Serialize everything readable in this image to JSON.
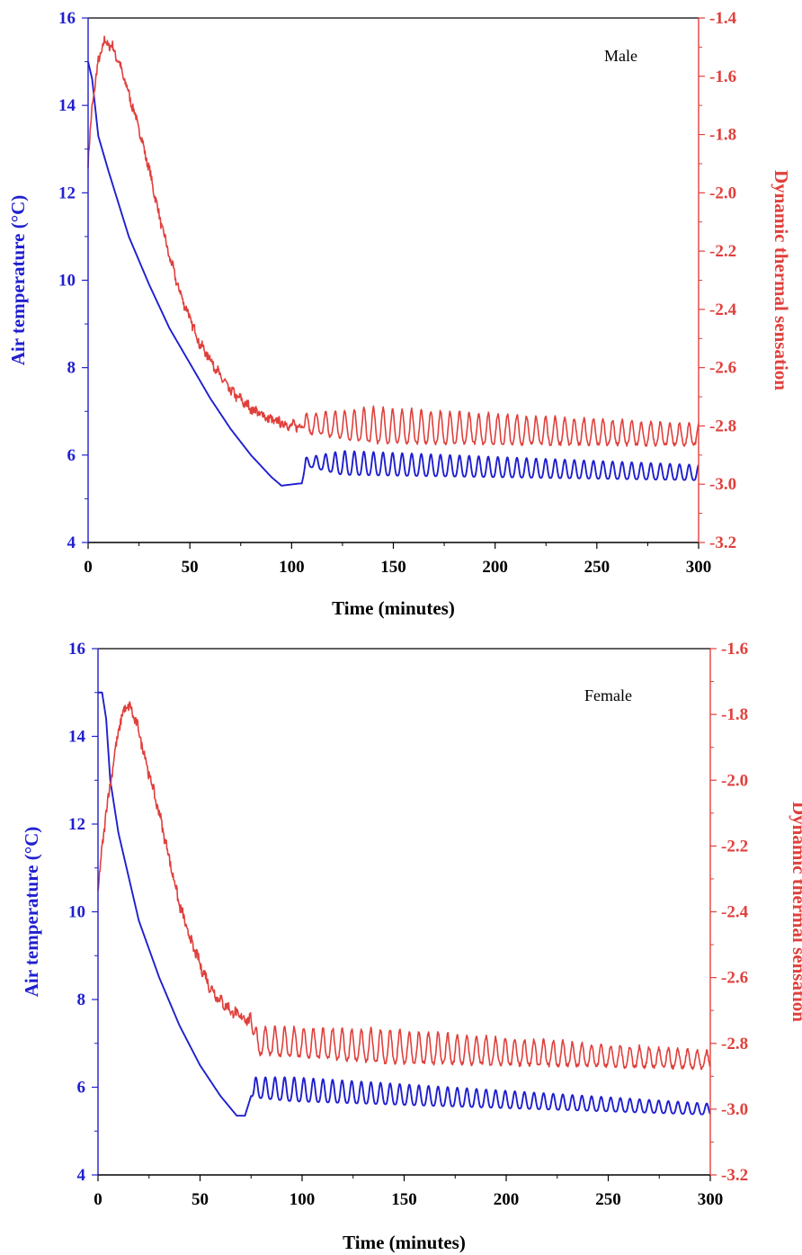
{
  "figure": {
    "colors": {
      "left_axis": "#1f1fcf",
      "right_axis": "#e0403c",
      "frame": "#000000"
    }
  },
  "chart_data": [
    {
      "type": "line",
      "panel_label": "Male",
      "xlabel": "Time (minutes)",
      "ylabel_left": "Air temperature (°C)",
      "ylabel_right": "Dynamic thermal sensation",
      "xlim": [
        0,
        300
      ],
      "ylim_left": [
        4,
        16
      ],
      "ylim_right": [
        -3.2,
        -1.4
      ],
      "x_ticks": [
        0,
        50,
        100,
        150,
        200,
        250,
        300
      ],
      "x_tick_labels": [
        "0",
        "50",
        "100",
        "150",
        "200",
        "250",
        "300"
      ],
      "left_ticks": [
        4,
        6,
        8,
        10,
        12,
        14,
        16
      ],
      "left_tick_labels": [
        "4",
        "6",
        "8",
        "10",
        "12",
        "14",
        "16"
      ],
      "right_ticks": [
        -3.2,
        -3.0,
        -2.8,
        -2.6,
        -2.4,
        -2.2,
        -2.0,
        -1.8,
        -1.6,
        -1.4
      ],
      "right_tick_labels": [
        "-3.2",
        "-3.0",
        "-2.8",
        "-2.6",
        "-2.4",
        "-2.2",
        "-2.0",
        "-1.8",
        "-1.6",
        "-1.4"
      ],
      "grid": false,
      "series": [
        {
          "axis": "left",
          "color": "#1f1fcf",
          "trend": {
            "x": [
              0,
              2,
              5,
              10,
              20,
              30,
              40,
              50,
              60,
              70,
              80,
              90,
              95,
              104
            ],
            "y": [
              15.0,
              14.6,
              13.3,
              12.5,
              11.0,
              9.9,
              8.9,
              8.1,
              7.3,
              6.6,
              6.0,
              5.5,
              5.3,
              5.35
            ]
          },
          "oscillation": {
            "start": 105,
            "end": 300,
            "period": 4.7,
            "center_start": 5.85,
            "center_end": 5.6,
            "amplitude_start": 0.15,
            "amplitude_peak": 0.55,
            "amplitude_end": 0.35,
            "peak_at": 125
          }
        },
        {
          "axis": "right",
          "color": "#e0403c",
          "trend": {
            "x": [
              0,
              2,
              5,
              8,
              12,
              15,
              20,
              25,
              30,
              35,
              40,
              45,
              50,
              55,
              60,
              65,
              70,
              75,
              80,
              85,
              90,
              95,
              100,
              105
            ],
            "y": [
              -1.9,
              -1.7,
              -1.55,
              -1.48,
              -1.5,
              -1.55,
              -1.66,
              -1.78,
              -1.92,
              -2.08,
              -2.22,
              -2.34,
              -2.43,
              -2.52,
              -2.57,
              -2.63,
              -2.68,
              -2.71,
              -2.74,
              -2.76,
              -2.78,
              -2.79,
              -2.8,
              -2.8
            ]
          },
          "oscillation": {
            "start": 105,
            "end": 300,
            "period": 4.7,
            "center_start": -2.79,
            "center_end": -2.83,
            "amplitude_start": 0.06,
            "amplitude_peak": 0.12,
            "amplitude_end": 0.07,
            "peak_at": 140
          }
        }
      ]
    },
    {
      "type": "line",
      "panel_label": "Female",
      "xlabel": "Time (minutes)",
      "ylabel_left": "Air temperature (°C)",
      "ylabel_right": "Dynamic thermal sensation",
      "xlim": [
        0,
        300
      ],
      "ylim_left": [
        4,
        16
      ],
      "ylim_right": [
        -3.2,
        -1.6
      ],
      "x_ticks": [
        0,
        50,
        100,
        150,
        200,
        250,
        300
      ],
      "x_tick_labels": [
        "0",
        "50",
        "100",
        "150",
        "200",
        "250",
        "300"
      ],
      "left_ticks": [
        4,
        6,
        8,
        10,
        12,
        14,
        16
      ],
      "left_tick_labels": [
        "4",
        "6",
        "8",
        "10",
        "12",
        "14",
        "16"
      ],
      "right_ticks": [
        -3.2,
        -3.0,
        -2.8,
        -2.6,
        -2.4,
        -2.2,
        -2.0,
        -1.8,
        -1.6
      ],
      "right_tick_labels": [
        "-3.2",
        "-3.0",
        "-2.8",
        "-2.6",
        "-2.4",
        "-2.2",
        "-2.0",
        "-1.8",
        "-1.6"
      ],
      "grid": false,
      "series": [
        {
          "axis": "left",
          "color": "#1f1fcf",
          "trend": {
            "x": [
              0,
              2,
              4,
              6,
              10,
              15,
              20,
              30,
              40,
              50,
              60,
              68,
              72,
              75
            ],
            "y": [
              15.0,
              15.0,
              14.4,
              13.0,
              11.8,
              10.8,
              9.8,
              8.5,
              7.4,
              6.5,
              5.8,
              5.35,
              5.35,
              5.8
            ]
          },
          "oscillation": {
            "start": 75,
            "end": 300,
            "period": 4.7,
            "center_start": 6.0,
            "center_end": 5.5,
            "amplitude_start": 0.45,
            "amplitude_peak": 0.55,
            "amplitude_end": 0.25,
            "peak_at": 95
          }
        },
        {
          "axis": "right",
          "color": "#e0403c",
          "trend": {
            "x": [
              0,
              2,
              5,
              10,
              13,
              16,
              20,
              25,
              30,
              35,
              40,
              45,
              50,
              55,
              60,
              65,
              70,
              75
            ],
            "y": [
              -2.35,
              -2.2,
              -2.05,
              -1.85,
              -1.78,
              -1.78,
              -1.85,
              -1.98,
              -2.1,
              -2.24,
              -2.38,
              -2.48,
              -2.56,
              -2.63,
              -2.67,
              -2.7,
              -2.72,
              -2.73
            ]
          },
          "oscillation": {
            "start": 75,
            "end": 300,
            "period": 4.7,
            "center_start": -2.79,
            "center_end": -2.85,
            "amplitude_start": 0.08,
            "amplitude_peak": 0.1,
            "amplitude_end": 0.05,
            "peak_at": 140
          }
        }
      ]
    }
  ]
}
